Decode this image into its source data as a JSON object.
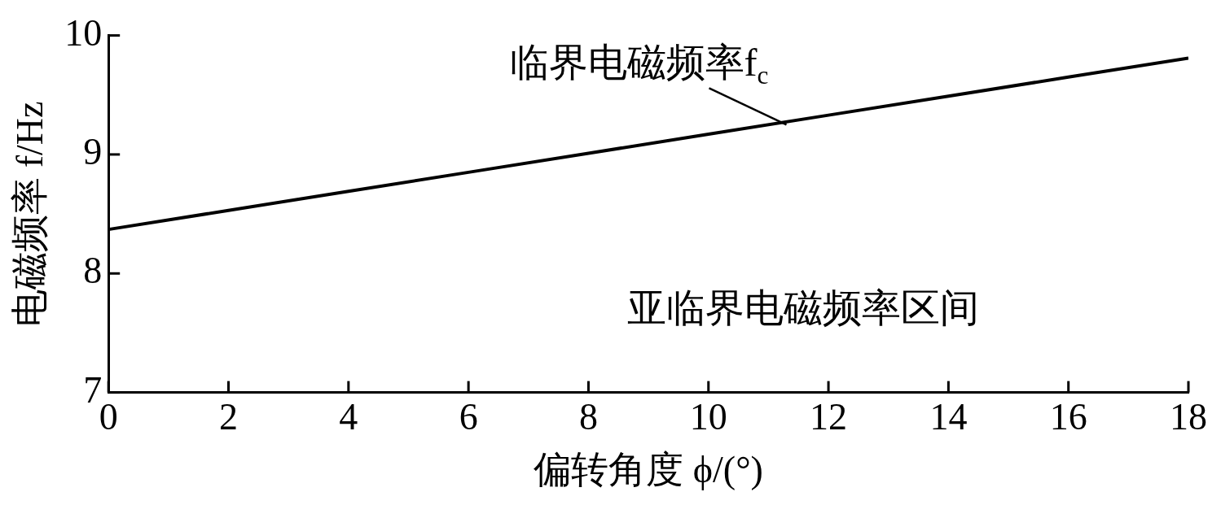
{
  "chart_data": {
    "type": "line",
    "xlabel": "偏转角度 ϕ/(°)",
    "ylabel": "电磁频率 f/Hz",
    "x": [
      0,
      2,
      4,
      6,
      8,
      10,
      12,
      14,
      16,
      18
    ],
    "series": [
      {
        "color": "#000000",
        "values": [
          8.37,
          8.53,
          8.69,
          8.85,
          9.01,
          9.17,
          9.33,
          9.49,
          9.65,
          9.81
        ]
      }
    ],
    "xlim": [
      0,
      18
    ],
    "xticks": [
      0,
      2,
      4,
      6,
      8,
      10,
      12,
      14,
      16,
      18
    ],
    "ylim": [
      7,
      10
    ],
    "yticks": [
      7,
      8,
      9,
      10
    ],
    "grid": false,
    "legend": false,
    "marker": "none",
    "line_style": "solid",
    "annotations": [
      {
        "text": "临界电磁频率f$_{c}$",
        "x": 11.3,
        "y": 9.25
      },
      "亚临界电磁频率区间"
    ]
  }
}
